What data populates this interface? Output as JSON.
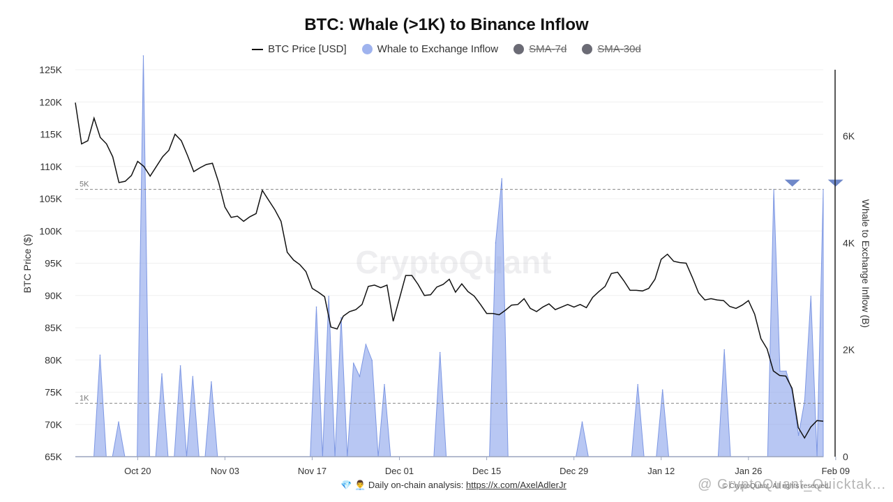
{
  "chart_data": {
    "type": "line+area",
    "title": "BTC: Whale (>1K) to Binance Inflow",
    "ylabel_left": "BTC Price ($)",
    "ylabel_right": "Whale to Exchange Inflow (B)",
    "ylim_left": [
      65000,
      125000
    ],
    "ylim_right": [
      0,
      7500
    ],
    "left_ticks": [
      {
        "v": 65000,
        "label": "65K"
      },
      {
        "v": 70000,
        "label": "70K"
      },
      {
        "v": 75000,
        "label": "75K"
      },
      {
        "v": 80000,
        "label": "80K"
      },
      {
        "v": 85000,
        "label": "85K"
      },
      {
        "v": 90000,
        "label": "90K"
      },
      {
        "v": 95000,
        "label": "95K"
      },
      {
        "v": 100000,
        "label": "100K"
      },
      {
        "v": 105000,
        "label": "105K"
      },
      {
        "v": 110000,
        "label": "110K"
      },
      {
        "v": 115000,
        "label": "115K"
      },
      {
        "v": 120000,
        "label": "120K"
      },
      {
        "v": 125000,
        "label": "125K"
      }
    ],
    "right_ticks": [
      {
        "v": 0,
        "label": "0"
      },
      {
        "v": 2000,
        "label": "2K"
      },
      {
        "v": 4000,
        "label": "4K"
      },
      {
        "v": 6000,
        "label": "6K"
      }
    ],
    "x_ticks": [
      {
        "i": 10,
        "label": "Oct 20"
      },
      {
        "i": 24,
        "label": "Nov 03"
      },
      {
        "i": 38,
        "label": "Nov 17"
      },
      {
        "i": 52,
        "label": "Dec 01"
      },
      {
        "i": 66,
        "label": "Dec 15"
      },
      {
        "i": 80,
        "label": "Dec 29"
      },
      {
        "i": 94,
        "label": "Jan 12"
      },
      {
        "i": 108,
        "label": "Jan 26"
      },
      {
        "i": 122,
        "label": "Feb 09"
      }
    ],
    "hlines": [
      {
        "v": 5000,
        "label": "5K"
      },
      {
        "v": 1000,
        "label": "1K"
      }
    ],
    "markers": [
      116,
      123
    ],
    "series": [
      {
        "name": "BTC Price [USD]",
        "color": "#111111",
        "values": [
          119900,
          113500,
          114000,
          117500,
          114500,
          113500,
          111500,
          107500,
          107700,
          108600,
          110800,
          110000,
          108500,
          110000,
          111500,
          112500,
          115000,
          114000,
          111700,
          109200,
          109800,
          110300,
          110500,
          107500,
          103700,
          102100,
          102300,
          101500,
          102200,
          102700,
          106300,
          104800,
          103300,
          101500,
          96700,
          95500,
          94800,
          93700,
          91100,
          90500,
          89800,
          85100,
          84800,
          86800,
          87500,
          87800,
          88600,
          91400,
          91600,
          91200,
          91600,
          86000,
          89500,
          93100,
          93100,
          91700,
          90000,
          90100,
          91300,
          91700,
          92500,
          90500,
          91800,
          90600,
          89900,
          88600,
          87200,
          87200,
          87000,
          87700,
          88500,
          88600,
          89500,
          88000,
          87500,
          88200,
          88700,
          87800,
          88200,
          88600,
          88200,
          88600,
          88100,
          89700,
          90600,
          91400,
          93400,
          93600,
          92300,
          90800,
          90800,
          90700,
          91100,
          92500,
          95600,
          96400,
          95300,
          95100,
          95000,
          92800,
          90400,
          89300,
          89500,
          89300,
          89200,
          88300,
          88000,
          88500,
          89200,
          87100,
          83300,
          81700,
          78300,
          77600,
          77500,
          75600,
          69500,
          67900,
          69600,
          70600,
          70500
        ]
      },
      {
        "name": "Whale to Exchange Inflow",
        "color": "#7d97e3",
        "values": [
          0,
          0,
          0,
          0,
          1900,
          0,
          0,
          650,
          0,
          0,
          0,
          7500,
          0,
          0,
          1550,
          0,
          0,
          1700,
          0,
          1500,
          0,
          0,
          1400,
          0,
          0,
          0,
          0,
          0,
          0,
          0,
          0,
          0,
          0,
          0,
          0,
          0,
          0,
          0,
          0,
          2800,
          0,
          3000,
          0,
          2600,
          0,
          1750,
          1500,
          2100,
          1800,
          0,
          1350,
          0,
          0,
          0,
          0,
          0,
          0,
          0,
          0,
          1950,
          0,
          0,
          0,
          0,
          0,
          0,
          0,
          0,
          4000,
          5200,
          0,
          0,
          0,
          0,
          0,
          0,
          0,
          0,
          0,
          0,
          0,
          0,
          650,
          0,
          0,
          0,
          0,
          0,
          0,
          0,
          0,
          1350,
          0,
          0,
          0,
          1250,
          0,
          0,
          0,
          0,
          0,
          0,
          0,
          0,
          0,
          2000,
          0,
          0,
          0,
          0,
          0,
          0,
          0,
          5000,
          1600,
          1600,
          1200,
          400,
          1050,
          3000,
          0,
          5000
        ]
      }
    ],
    "legend": [
      {
        "label": "BTC Price [USD]",
        "type": "line",
        "color": "#111111",
        "active": true
      },
      {
        "label": "Whale to Exchange Inflow",
        "type": "dot",
        "color": "#9fb3ee",
        "active": true
      },
      {
        "label": "SMA-7d",
        "type": "dot",
        "color": "#6b6b75",
        "active": false
      },
      {
        "label": "SMA-30d",
        "type": "dot",
        "color": "#6b6b75",
        "active": false
      }
    ],
    "watermark": "CryptoQuant"
  },
  "footer": {
    "icons": "💎 👨‍💼",
    "text": "Daily on-chain analysis:",
    "link": "https://x.com/AxelAdlerJr"
  },
  "copyright": "© CryptoQuant. All rights reserved.",
  "corner_watermark": "@ CryptoQuant_Quicktak..."
}
